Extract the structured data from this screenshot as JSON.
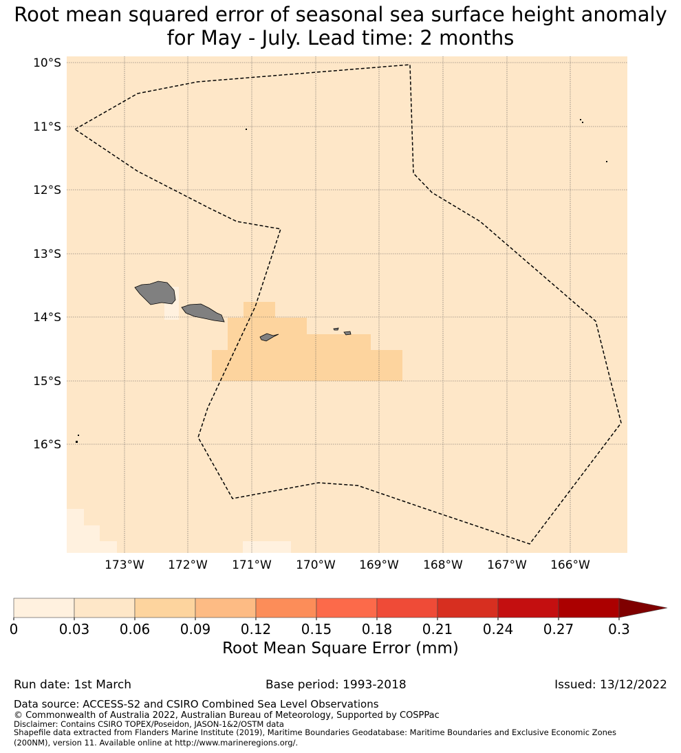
{
  "title": {
    "line1": "Root mean squared error of seasonal sea surface height anomaly",
    "line2": "for May - July. Lead time: 2 months"
  },
  "map": {
    "lat_labels": [
      "10°S",
      "11°S",
      "12°S",
      "13°S",
      "14°S",
      "15°S",
      "16°S"
    ],
    "lon_labels": [
      "173°W",
      "172°W",
      "171°W",
      "170°W",
      "169°W",
      "168°W",
      "167°W",
      "166°W"
    ],
    "ocean_color": "#fee7c8",
    "land_color": "#808080",
    "boundary_style": "dashed"
  },
  "colorbar": {
    "ticks": [
      "0",
      "0.03",
      "0.06",
      "0.09",
      "0.12",
      "0.15",
      "0.18",
      "0.21",
      "0.24",
      "0.27",
      "0.3"
    ],
    "colors": [
      "#fff1df",
      "#fee7c8",
      "#fdd49e",
      "#fdbb84",
      "#fc8d59",
      "#fc6a4a",
      "#ef4b37",
      "#d72f20",
      "#c40f10",
      "#ab0000"
    ],
    "extend_color": "#7f0000",
    "label": "Root Mean Square Error (mm)"
  },
  "footer": {
    "run_date": "Run date: 1st March",
    "base_period": "Base period: 1993-2018",
    "issued": "Issued: 13/12/2022",
    "data_source": "Data source: ACCESS-S2 and CSIRO Combined Sea Level Observations",
    "copyright": "© Commonwealth of Australia 2022, Australian Bureau of Meteorology, Supported by COSPPac",
    "disclaimer": "Disclaimer: Contains CSIRO TOPEX/Poseidon, JASON-1&2/OSTM data",
    "shapefile_line1": "Shapefile data extracted from Flanders Marine Institute (2019), Maritime Boundaries Geodatabase: Maritime Boundaries and Exclusive Economic Zones",
    "shapefile_line2": "(200NM), version 11. Available online at http://www.marineregions.org/."
  }
}
